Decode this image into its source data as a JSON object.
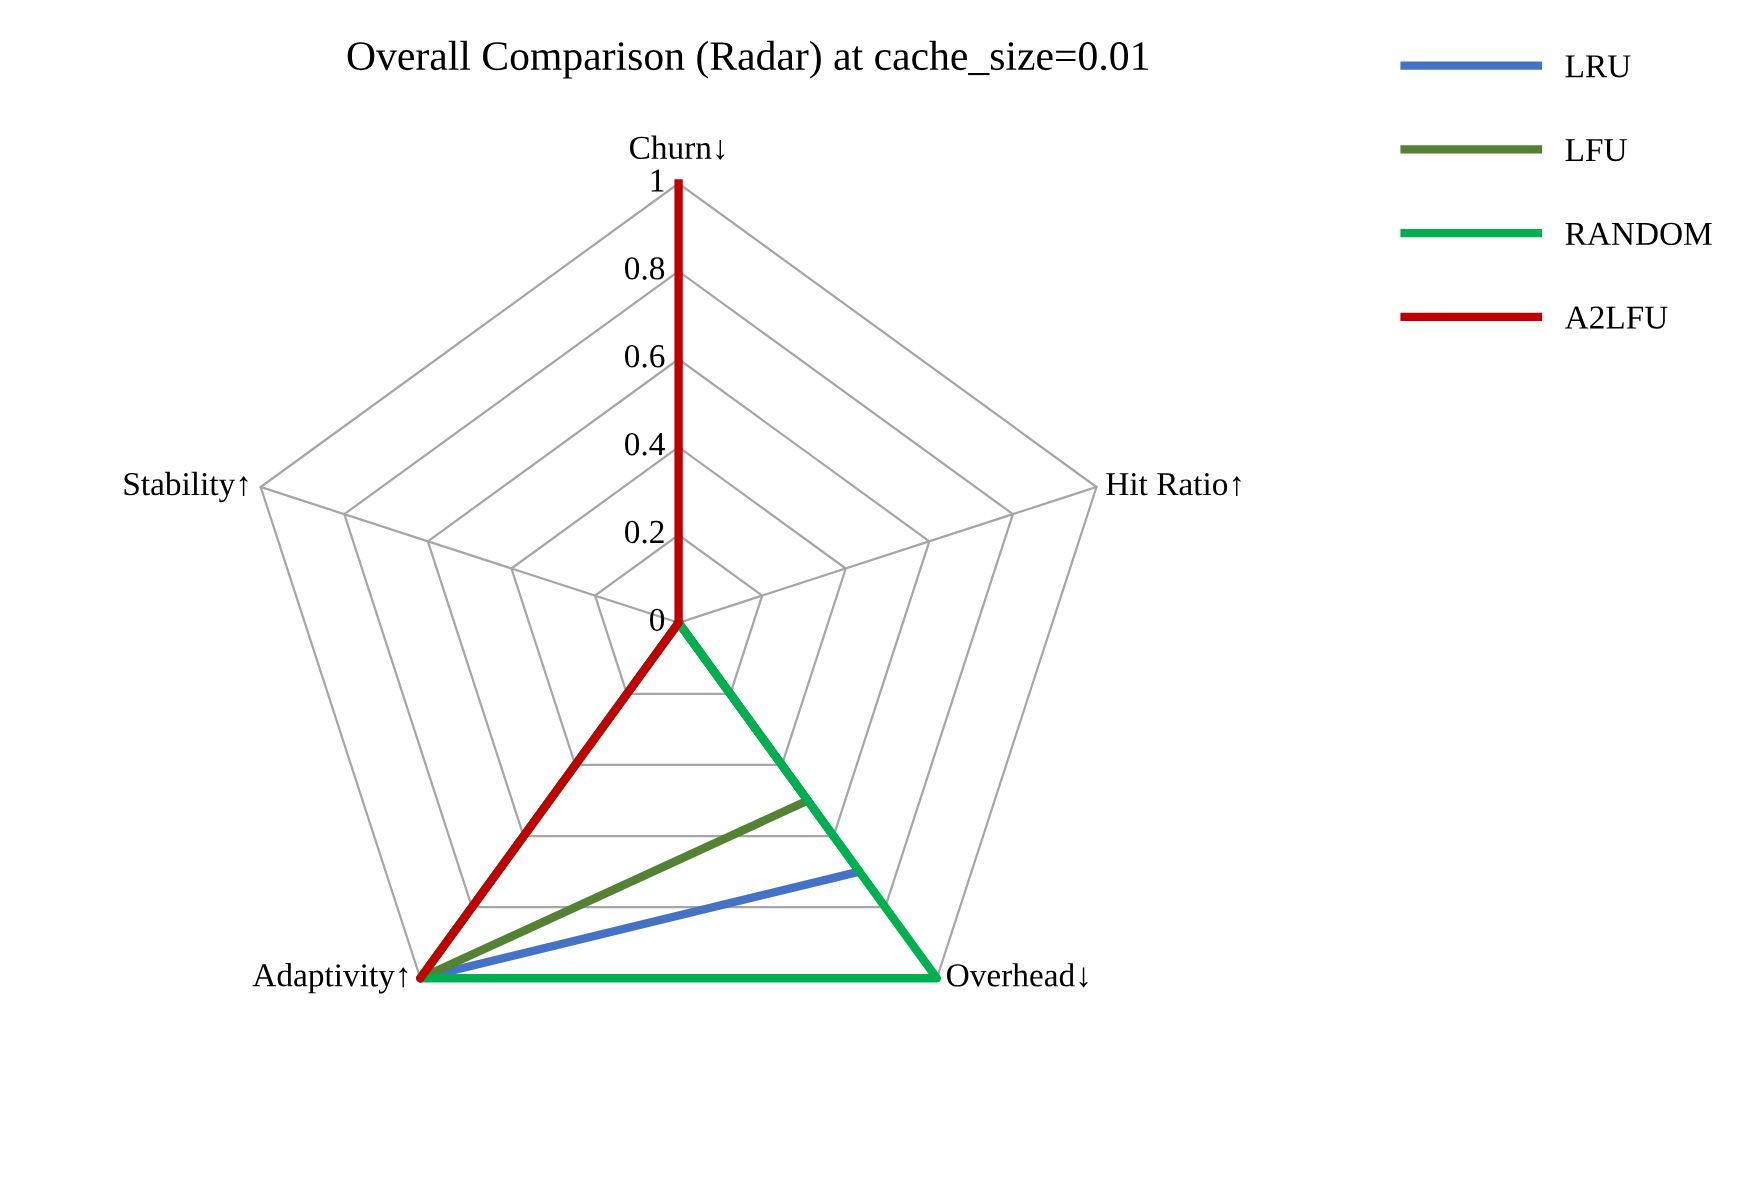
{
  "chart_data": {
    "type": "radar",
    "title": "Overall Comparison (Radar) at cache_size=0.01",
    "categories": [
      "Churn↓",
      "Hit Ratio↑",
      "Overhead↓",
      "Adaptivity↑",
      "Stability↑"
    ],
    "series": [
      {
        "name": "LRU",
        "color": "#4472c4",
        "values": [
          0,
          0,
          0.7,
          1,
          0
        ]
      },
      {
        "name": "LFU",
        "color": "#548235",
        "values": [
          0,
          0,
          0.5,
          1,
          0
        ]
      },
      {
        "name": "RANDOM",
        "color": "#00b050",
        "values": [
          0,
          0,
          1,
          1,
          0
        ]
      },
      {
        "name": "A2LFU",
        "color": "#c00000",
        "values": [
          1,
          0,
          0,
          1,
          0
        ]
      }
    ],
    "ylim": [
      0,
      1
    ],
    "yticks": [
      0,
      0.2,
      0.4,
      0.6,
      0.8,
      1
    ],
    "grid": true,
    "legend": "right"
  }
}
